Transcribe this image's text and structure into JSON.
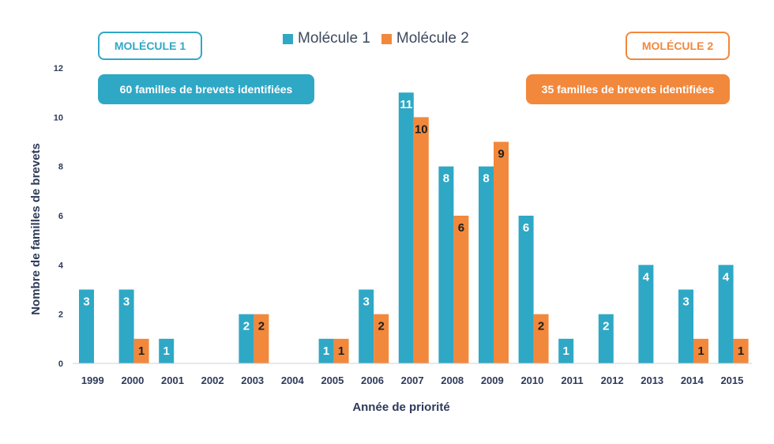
{
  "colors": {
    "molecule1": "#2fa8c6",
    "molecule2": "#f2883c",
    "axis_text": "#2e3a59"
  },
  "legend": {
    "series1": "Molécule 1",
    "series2": "Molécule 2"
  },
  "box_left": {
    "title": "MOLÉCULE 1",
    "subtitle": "60 familles de brevets identifiées"
  },
  "box_right": {
    "title": "MOLÉCULE 2",
    "subtitle": "35 familles de brevets identifiées"
  },
  "chart_data": {
    "type": "bar",
    "title": "",
    "xlabel": "Année de priorité",
    "ylabel": "Nombre de familles de brevets",
    "ylim": [
      0,
      12
    ],
    "yticks": [
      0,
      2,
      4,
      6,
      8,
      10,
      12
    ],
    "grid": false,
    "legend_position": "top-center",
    "categories": [
      "1999",
      "2000",
      "2001",
      "2002",
      "2003",
      "2004",
      "2005",
      "2006",
      "2007",
      "2008",
      "2009",
      "2010",
      "2011",
      "2012",
      "2013",
      "2014",
      "2015"
    ],
    "series": [
      {
        "name": "Molécule 1",
        "values": [
          3,
          3,
          1,
          0,
          2,
          0,
          1,
          3,
          11,
          8,
          8,
          6,
          1,
          2,
          4,
          3,
          4
        ]
      },
      {
        "name": "Molécule 2",
        "values": [
          0,
          1,
          0,
          0,
          2,
          0,
          1,
          2,
          10,
          6,
          9,
          2,
          0,
          0,
          0,
          1,
          1
        ]
      }
    ]
  }
}
